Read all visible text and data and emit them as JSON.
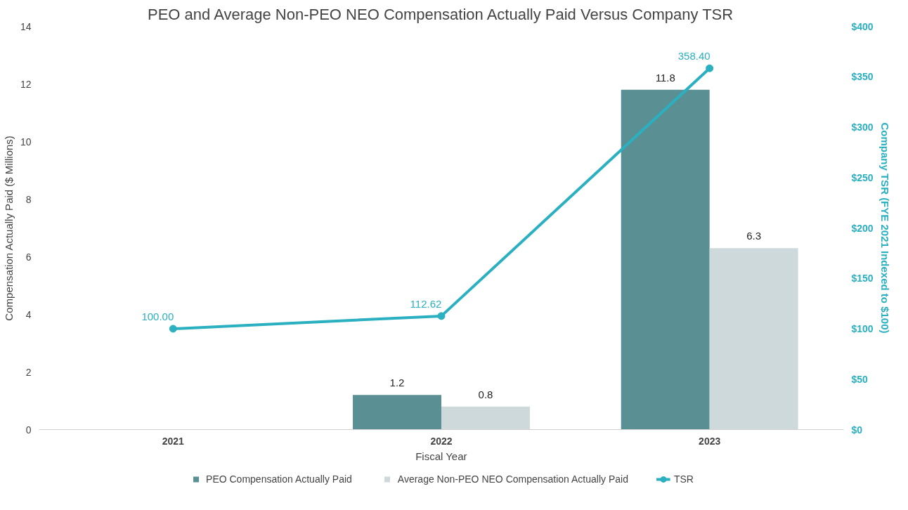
{
  "chart_data": {
    "type": "bar",
    "title": "PEO and Average Non-PEO NEO Compensation Actually Paid Versus Company TSR",
    "xlabel": "Fiscal Year",
    "ylabel": "Compensation Actually Paid ($ Millions)",
    "y2label": "Company TSR (FYE 2021 Indexed to $100)",
    "categories": [
      "2021",
      "2022",
      "2023"
    ],
    "series": [
      {
        "name": "PEO Compensation Actually Paid",
        "color": "#5a8f93",
        "values": [
          null,
          1.2,
          11.8
        ],
        "value_labels": [
          null,
          "1.2",
          "11.8"
        ]
      },
      {
        "name": "Average Non-PEO NEO Compensation Actually Paid",
        "color": "#cdd9db",
        "values": [
          null,
          0.8,
          6.3
        ],
        "value_labels": [
          null,
          "0.8",
          "6.3"
        ]
      },
      {
        "name": "TSR",
        "type": "line",
        "axis": "y2",
        "marker": "circle",
        "color": "#2ab0c0",
        "values": [
          100.0,
          112.62,
          358.4
        ],
        "value_labels": [
          "100.00",
          "112.62",
          "358.40"
        ]
      }
    ],
    "ylim": [
      0,
      14
    ],
    "yticks": [
      0,
      2,
      4,
      6,
      8,
      10,
      12,
      14
    ],
    "y2lim": [
      0,
      400
    ],
    "y2ticks": [
      {
        "value": 0,
        "label": "$0"
      },
      {
        "value": 50,
        "label": "$50"
      },
      {
        "value": 100,
        "label": "$100"
      },
      {
        "value": 150,
        "label": "$150"
      },
      {
        "value": 200,
        "label": "$200"
      },
      {
        "value": 250,
        "label": "$250"
      },
      {
        "value": 300,
        "label": "$300"
      },
      {
        "value": 350,
        "label": "$350"
      },
      {
        "value": 400,
        "label": "$400"
      }
    ],
    "grid": false,
    "legend": "bottom"
  }
}
